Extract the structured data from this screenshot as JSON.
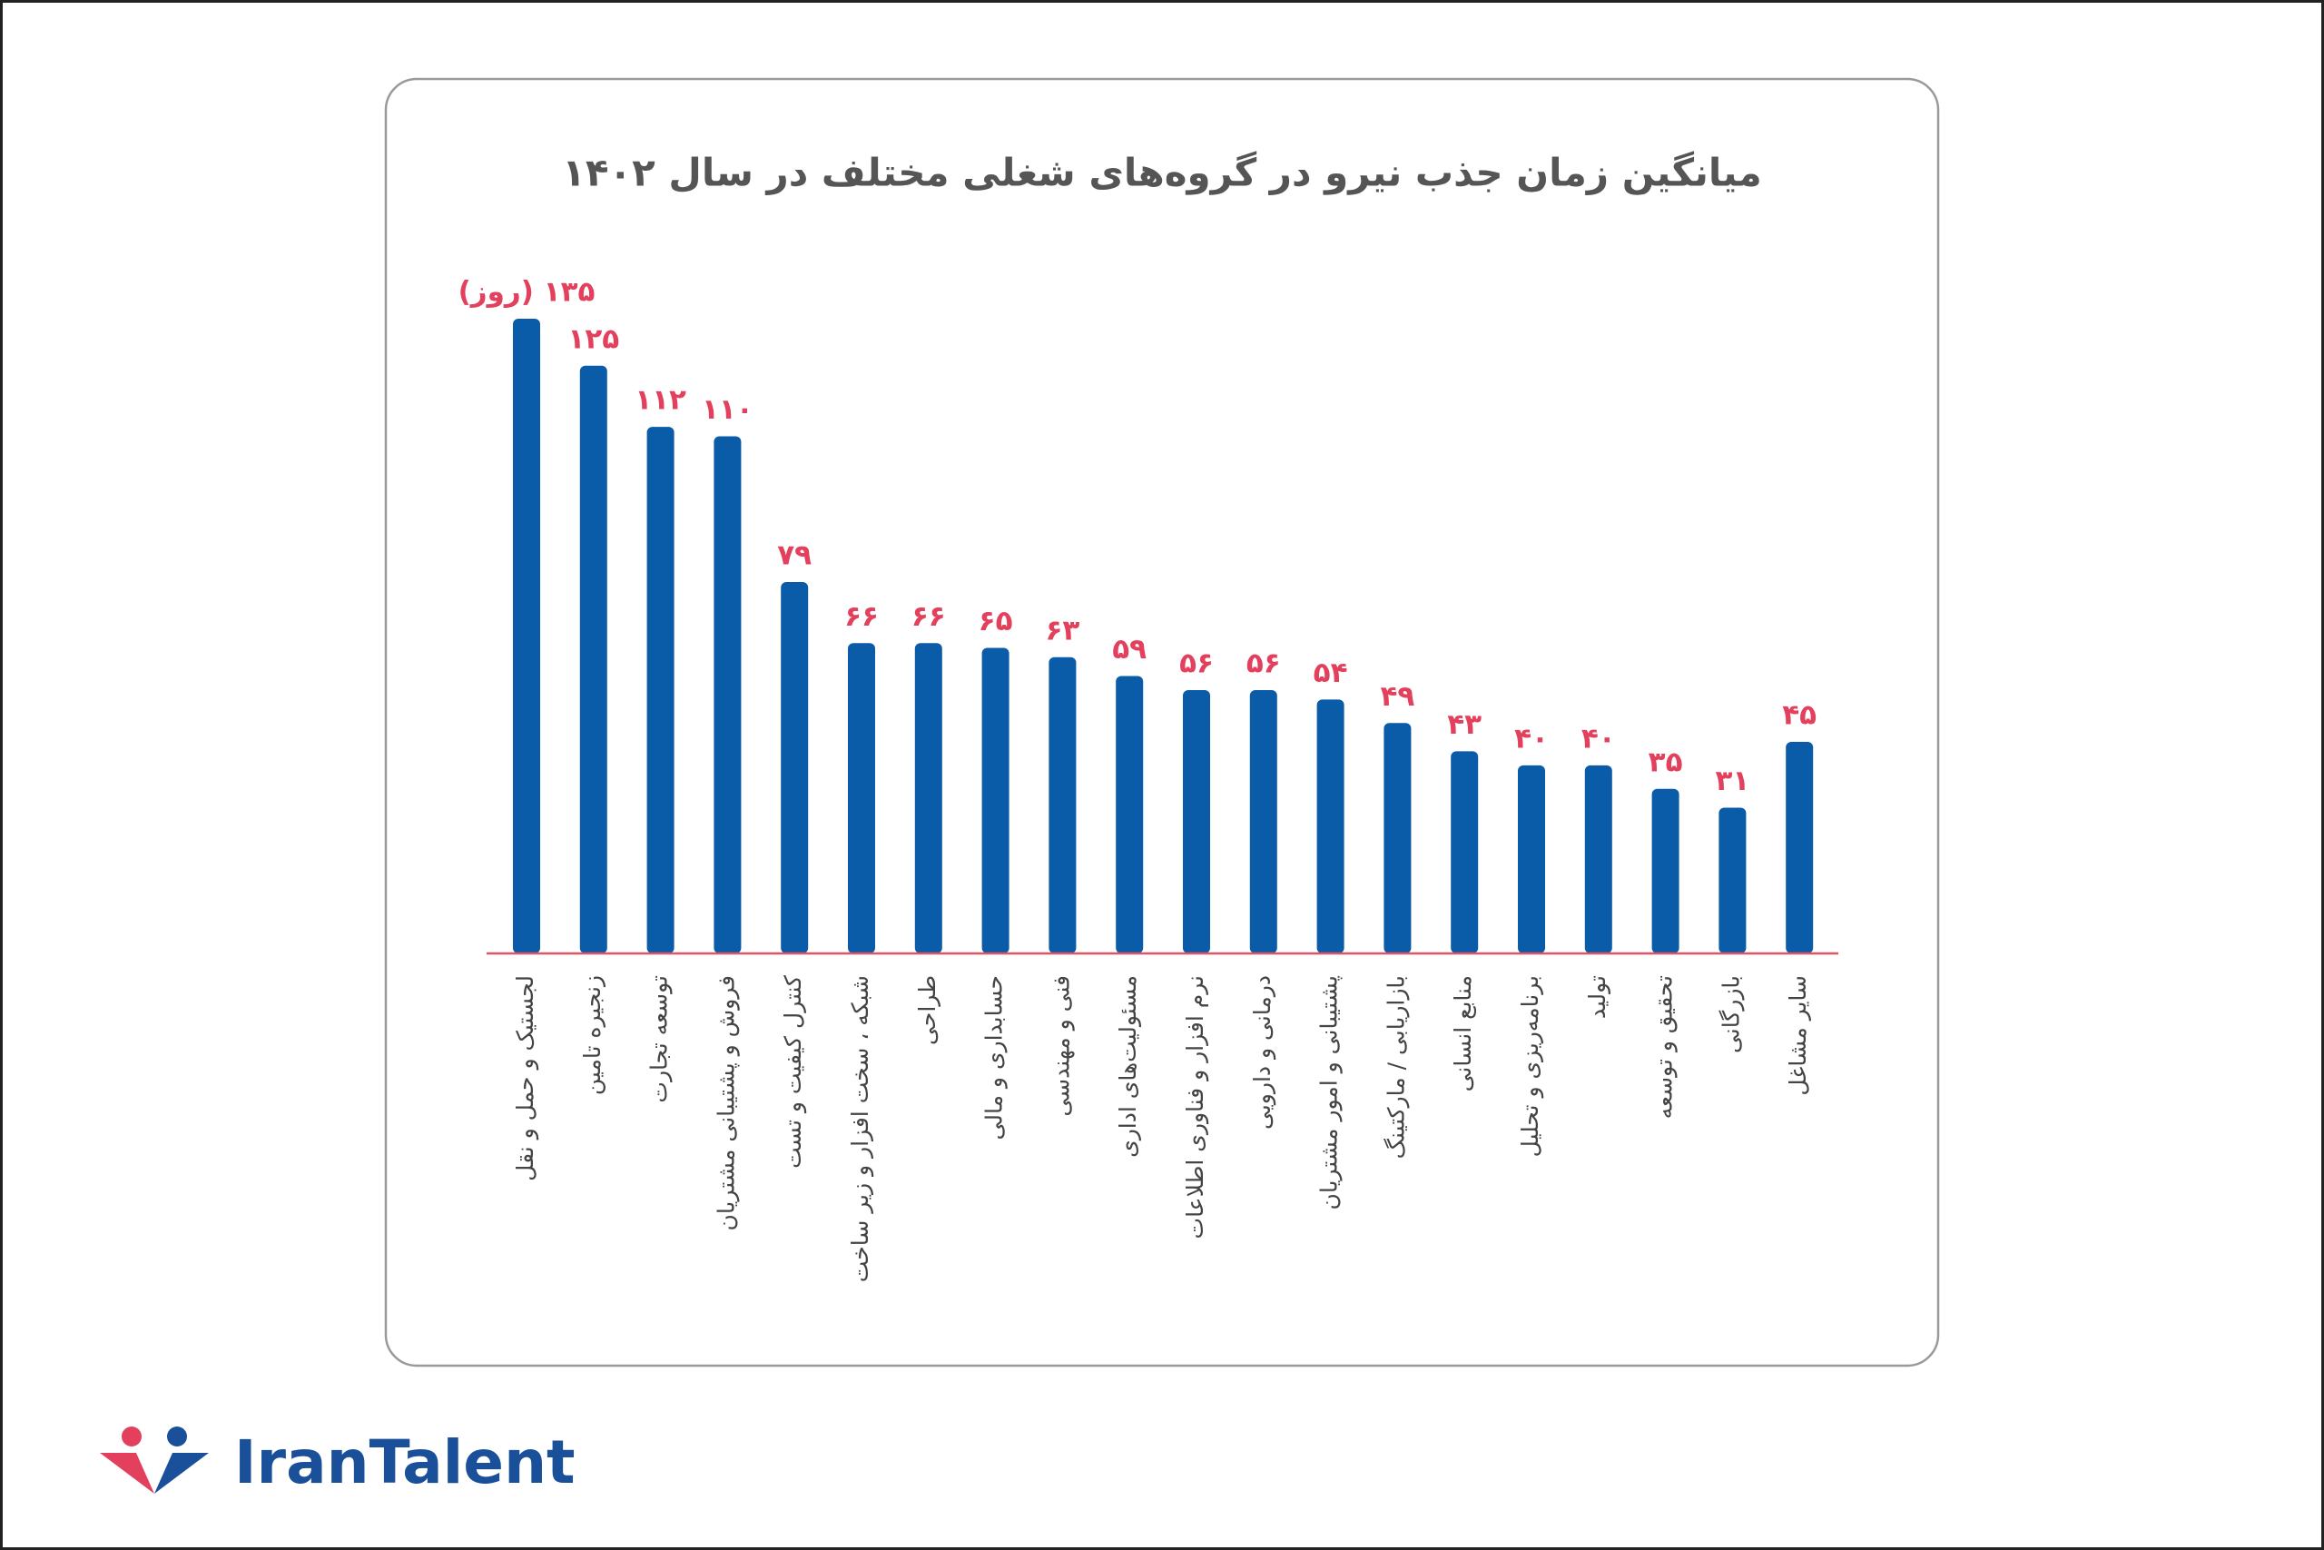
{
  "chart_data": {
    "type": "bar",
    "title": "میانگین زمان جذب نیرو در گروه‌های شغلی مختلف در سال ۱۴۰۲",
    "categories": [
      "لجستیک و حمل و نقل",
      "زنجیره تامین",
      "توسعه تجارت",
      "فروش و پشتیبانی مشتریان",
      "کنترل کیفیت و تست",
      "شبکه ، سخت افزار و زیر ساخت",
      "طراحی",
      "حسابداری و مالی",
      "فنی و مهندسی",
      "مسئولیت‌های اداری",
      "نرم افزار و فناوری اطلاعات",
      "درمانی و دارویی",
      "پشتیبانی و امور مشتریان",
      "بازاریابی / مارکتینگ",
      "منابع انسانی",
      "برنامه‌ریزی و تحلیل",
      "تولید",
      "تحقیق و توسعه",
      "بازرگانی",
      "سایر مشاغل"
    ],
    "values": [
      135,
      125,
      112,
      110,
      79,
      66,
      66,
      65,
      63,
      59,
      56,
      56,
      54,
      49,
      43,
      40,
      40,
      35,
      31,
      45
    ],
    "value_labels": [
      "۱۳۵ (روز)",
      "۱۲۵",
      "۱۱۲",
      "۱۱۰",
      "۷۹",
      "۶۶",
      "۶۶",
      "۶۵",
      "۶۳",
      "۵۹",
      "۵۶",
      "۵۶",
      "۵۴",
      "۴۹",
      "۴۳",
      "۴۰",
      "۴۰",
      "۳۵",
      "۳۱",
      "۴۵"
    ],
    "color": "#0a5ca8",
    "label_color": "#e2405c",
    "baseline_color": "#e05565"
  },
  "footer": {
    "logo": "IranTalent"
  }
}
